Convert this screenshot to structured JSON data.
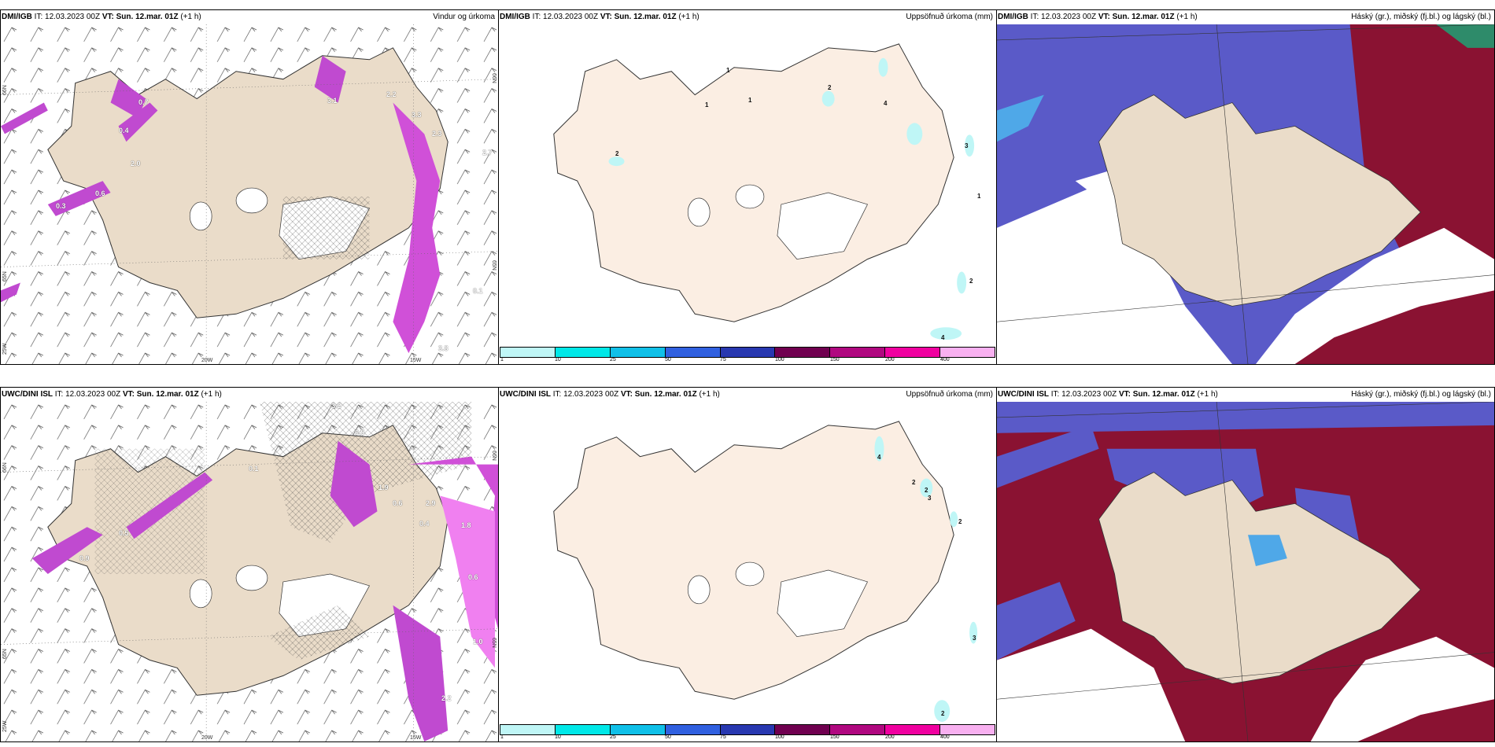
{
  "panels": [
    {
      "model": "DMI/IGB",
      "it_label": "IT:",
      "it_value": "12.03.2023 00Z",
      "vt_label": "VT:",
      "vt_value": "Sun. 12.mar. 01Z",
      "lead": "(+1 h)",
      "product": "Vindur og úrkoma"
    },
    {
      "model": "DMI/IGB",
      "it_label": "IT:",
      "it_value": "12.03.2023 00Z",
      "vt_label": "VT:",
      "vt_value": "Sun. 12.mar. 01Z",
      "lead": "(+1 h)",
      "product": "Uppsöfnuð úrkoma (mm)"
    },
    {
      "model": "DMI/IGB",
      "it_label": "IT:",
      "it_value": "12.03.2023 00Z",
      "vt_label": "VT:",
      "vt_value": "Sun. 12.mar. 01Z",
      "lead": "(+1 h)",
      "product": "Háský (gr.), miðský (fj.bl.) og lágský (bl.)"
    },
    {
      "model": "UWC/DINI ISL",
      "it_label": "IT:",
      "it_value": "12.03.2023 00Z",
      "vt_label": "VT:",
      "vt_value": "Sun. 12.mar. 01Z",
      "lead": "(+1 h)",
      "product": ""
    },
    {
      "model": "UWC/DINI ISL",
      "it_label": "IT:",
      "it_value": "12.03.2023 00Z",
      "vt_label": "VT:",
      "vt_value": "Sun. 12.mar. 01Z",
      "lead": "(+1 h)",
      "product": "Uppsöfnuð úrkoma (mm)"
    },
    {
      "model": "UWC/DINI ISL",
      "it_label": "IT:",
      "it_value": "12.03.2023 00Z",
      "vt_label": "VT:",
      "vt_value": "Sun. 12.mar. 01Z",
      "lead": "(+1 h)",
      "product": "Háský (gr.), miðský (fj.bl.) og lágský (bl.)"
    }
  ],
  "axes": {
    "lat_66": "66N",
    "lat_65": "65N",
    "lon_20": "20W",
    "lon_15": "15W",
    "lon_25": "25W"
  },
  "colorbar": {
    "ticks": [
      "1",
      "10",
      "25",
      "50",
      "75",
      "100",
      "150",
      "200",
      "400"
    ],
    "colors": [
      "#bff6f6",
      "#00e8e8",
      "#10c0e8",
      "#3060e0",
      "#2838b0",
      "#700050",
      "#b00880",
      "#f000a0",
      "#f8b0f0"
    ]
  },
  "precip_top": [
    "1",
    "1",
    "1",
    "2",
    "4",
    "2",
    "3",
    "1",
    "2",
    "4"
  ],
  "precip_bottom": [
    "4",
    "2",
    "2",
    "3",
    "2",
    "3",
    "2"
  ],
  "windrain_top": [
    "0.7",
    "0.4",
    "2.0",
    "0.6",
    "0.3",
    "3.1",
    "2.2",
    "3.3",
    "2.3",
    "2.7",
    "0.1",
    "3.8"
  ],
  "windrain_bottom": [
    "0.5",
    "0.1",
    "0.5",
    "0.9",
    "1.9",
    "0.4",
    "2.9",
    "0.6",
    "1.8",
    "0.6",
    "2.2",
    "1.0",
    "3.2"
  ],
  "colors": {
    "land": "#eadcc9",
    "land_light": "#fbeee3",
    "precip_purple": "#c04ad0",
    "precip_pink": "#f080f0",
    "cloud_blue": "#5a5ac8",
    "cloud_light_blue": "#4fa8e8",
    "cloud_red": "#8a1232",
    "cloud_green": "#2e8b6a"
  }
}
